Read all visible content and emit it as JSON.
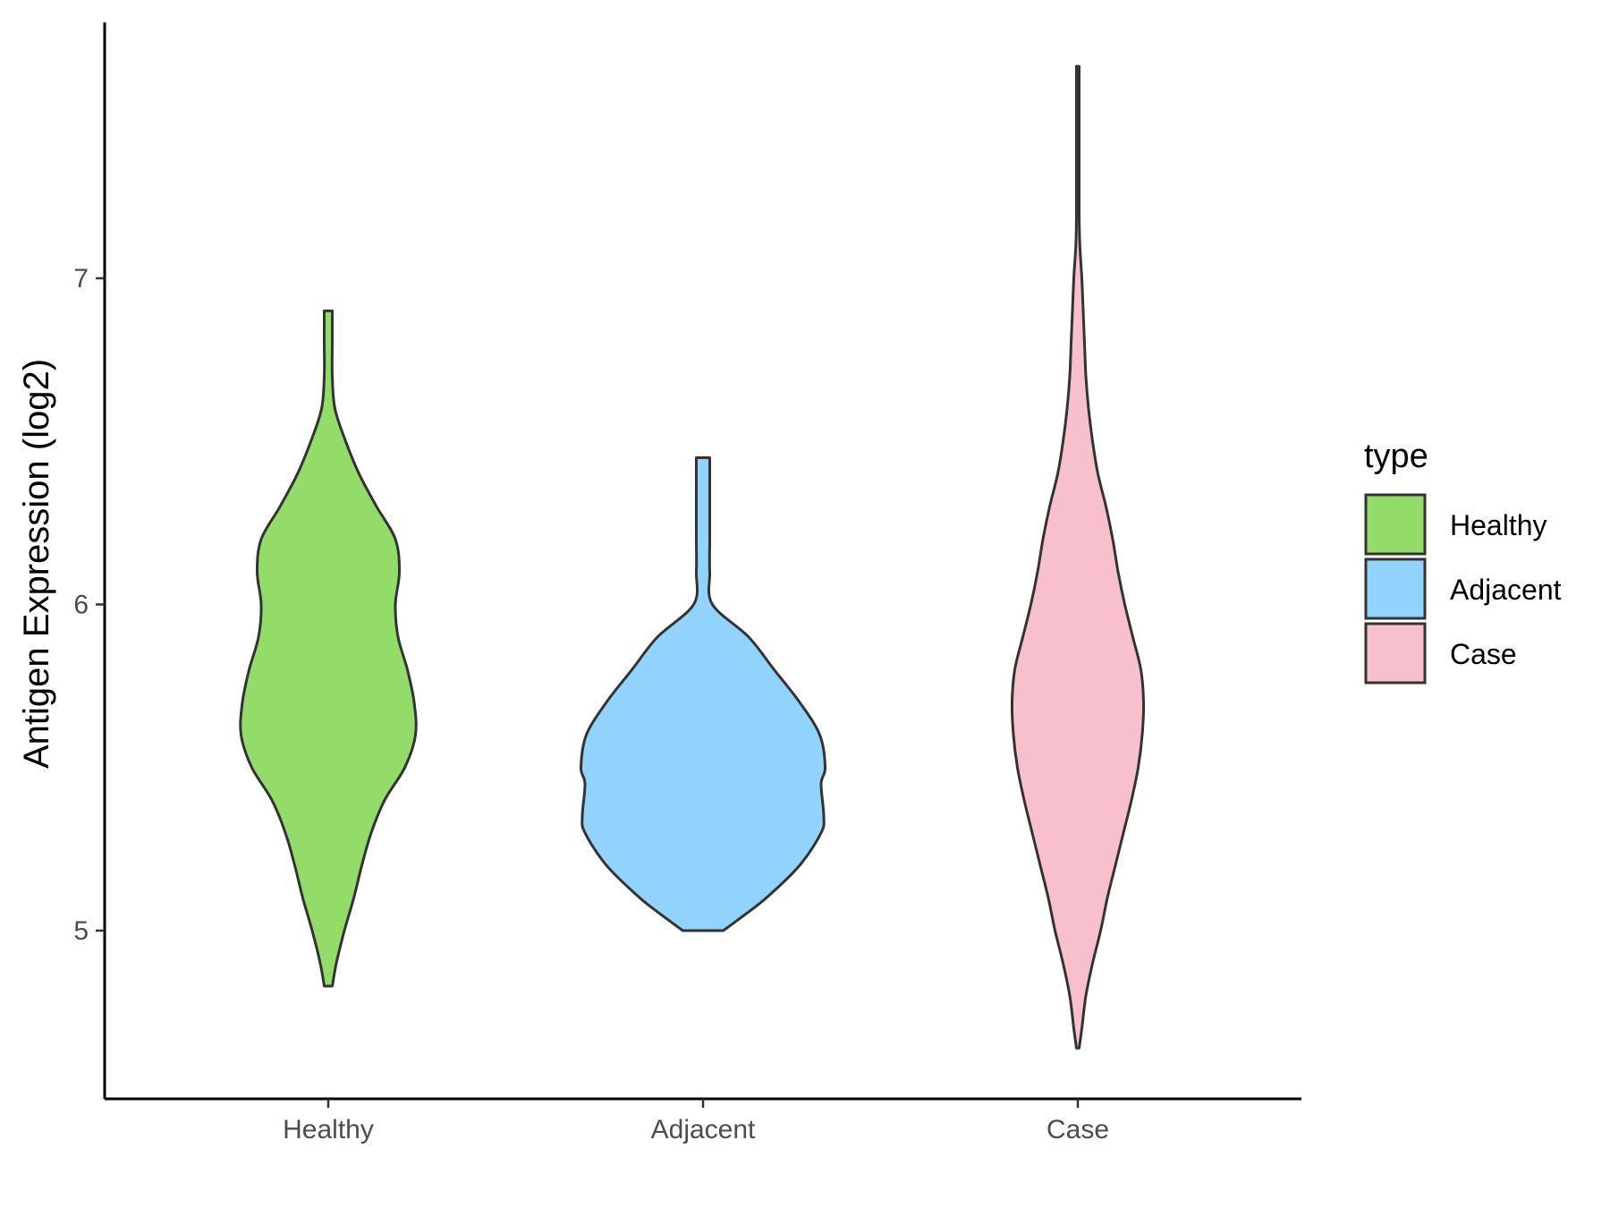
{
  "chart_data": {
    "type": "violin",
    "title": "",
    "xlabel": "",
    "ylabel": "Antigen Expression (log2)",
    "ylim": [
      4.4,
      7.7
    ],
    "yticks": [
      5,
      6,
      7
    ],
    "categories": [
      "Healthy",
      "Adjacent",
      "Case"
    ],
    "grid": false,
    "legend": {
      "title": "type",
      "position": "right"
    },
    "series": [
      {
        "name": "Healthy",
        "color": "#93dc6a",
        "min": 4.83,
        "max": 6.9,
        "density": [
          [
            4.83,
            0.03
          ],
          [
            4.9,
            0.06
          ],
          [
            5.0,
            0.12
          ],
          [
            5.1,
            0.19
          ],
          [
            5.2,
            0.25
          ],
          [
            5.3,
            0.32
          ],
          [
            5.4,
            0.42
          ],
          [
            5.5,
            0.57
          ],
          [
            5.6,
            0.65
          ],
          [
            5.7,
            0.64
          ],
          [
            5.8,
            0.59
          ],
          [
            5.9,
            0.52
          ],
          [
            6.0,
            0.5
          ],
          [
            6.1,
            0.53
          ],
          [
            6.2,
            0.5
          ],
          [
            6.3,
            0.36
          ],
          [
            6.4,
            0.23
          ],
          [
            6.5,
            0.13
          ],
          [
            6.6,
            0.05
          ],
          [
            6.7,
            0.03
          ],
          [
            6.8,
            0.03
          ],
          [
            6.9,
            0.03
          ]
        ]
      },
      {
        "name": "Adjacent",
        "color": "#92d3fd",
        "min": 5.0,
        "max": 6.45,
        "density": [
          [
            5.0,
            0.15
          ],
          [
            5.03,
            0.25
          ],
          [
            5.1,
            0.47
          ],
          [
            5.2,
            0.72
          ],
          [
            5.3,
            0.88
          ],
          [
            5.35,
            0.9
          ],
          [
            5.45,
            0.88
          ],
          [
            5.5,
            0.91
          ],
          [
            5.6,
            0.87
          ],
          [
            5.7,
            0.72
          ],
          [
            5.8,
            0.53
          ],
          [
            5.9,
            0.34
          ],
          [
            6.0,
            0.07
          ],
          [
            6.1,
            0.05
          ],
          [
            6.2,
            0.05
          ],
          [
            6.3,
            0.05
          ],
          [
            6.4,
            0.05
          ],
          [
            6.45,
            0.05
          ]
        ]
      },
      {
        "name": "Case",
        "color": "#f7c0cc",
        "min": 4.64,
        "max": 7.65,
        "density": [
          [
            4.64,
            0.01
          ],
          [
            4.7,
            0.03
          ],
          [
            4.8,
            0.06
          ],
          [
            4.9,
            0.11
          ],
          [
            5.0,
            0.17
          ],
          [
            5.1,
            0.22
          ],
          [
            5.2,
            0.28
          ],
          [
            5.3,
            0.34
          ],
          [
            5.4,
            0.4
          ],
          [
            5.5,
            0.45
          ],
          [
            5.6,
            0.48
          ],
          [
            5.7,
            0.49
          ],
          [
            5.8,
            0.47
          ],
          [
            5.9,
            0.41
          ],
          [
            6.0,
            0.35
          ],
          [
            6.1,
            0.3
          ],
          [
            6.2,
            0.26
          ],
          [
            6.3,
            0.21
          ],
          [
            6.4,
            0.15
          ],
          [
            6.5,
            0.11
          ],
          [
            6.6,
            0.08
          ],
          [
            6.7,
            0.06
          ],
          [
            6.8,
            0.05
          ],
          [
            6.9,
            0.04
          ],
          [
            7.0,
            0.03
          ],
          [
            7.1,
            0.015
          ],
          [
            7.2,
            0.01
          ],
          [
            7.4,
            0.01
          ],
          [
            7.65,
            0.01
          ]
        ]
      }
    ]
  }
}
